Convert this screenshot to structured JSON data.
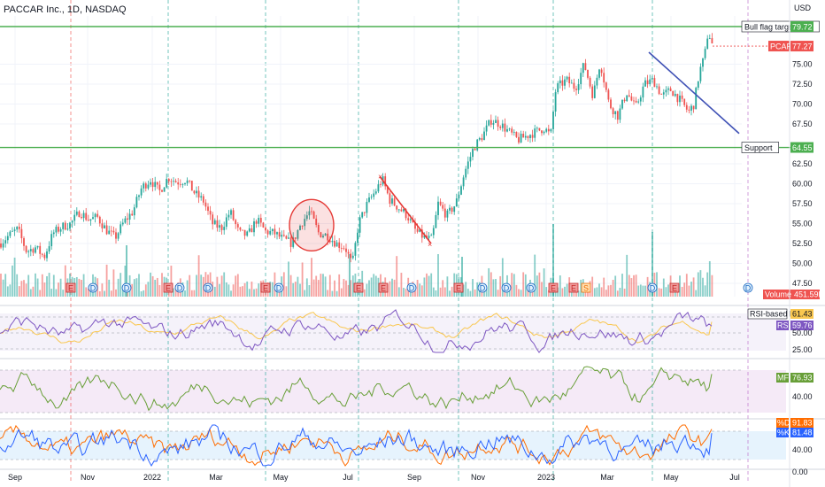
{
  "title": "PACCAR Inc., 1D, NASDAQ",
  "currency": "USD",
  "chart_data": {
    "type": "candlestick",
    "symbol": "PCAR",
    "price_axis": {
      "ticks": [
        "75.00",
        "72.50",
        "70.00",
        "67.50",
        "62.50",
        "60.00",
        "57.50",
        "55.00",
        "52.50",
        "50.00",
        "47.50"
      ],
      "ylim": [
        46.2,
        81.0
      ]
    },
    "time_axis": {
      "ticks": [
        "Sep",
        "Nov",
        "2022",
        "Mar",
        "May",
        "Jul",
        "Sep",
        "Nov",
        "2023",
        "Mar",
        "May",
        "Jul"
      ]
    },
    "price_path": [
      [
        0,
        52.5
      ],
      [
        10,
        53.5
      ],
      [
        20,
        54.3
      ],
      [
        30,
        51.5
      ],
      [
        40,
        52.0
      ],
      [
        50,
        50.8
      ],
      [
        60,
        53.8
      ],
      [
        70,
        54.6
      ],
      [
        80,
        55.0
      ],
      [
        90,
        56.5
      ],
      [
        100,
        55.5
      ],
      [
        110,
        55.8
      ],
      [
        120,
        54.2
      ],
      [
        130,
        53.2
      ],
      [
        140,
        55.2
      ],
      [
        150,
        56.5
      ],
      [
        160,
        59.5
      ],
      [
        170,
        60.5
      ],
      [
        180,
        59.0
      ],
      [
        190,
        60.8
      ],
      [
        200,
        60.2
      ],
      [
        210,
        60.5
      ],
      [
        220,
        58.8
      ],
      [
        230,
        57.8
      ],
      [
        240,
        55.0
      ],
      [
        250,
        54.4
      ],
      [
        260,
        56.5
      ],
      [
        270,
        53.8
      ],
      [
        280,
        53.5
      ],
      [
        290,
        55.5
      ],
      [
        300,
        54.0
      ],
      [
        310,
        53.8
      ],
      [
        320,
        53.0
      ],
      [
        330,
        52.5
      ],
      [
        340,
        55.0
      ],
      [
        350,
        56.5
      ],
      [
        360,
        53.8
      ],
      [
        370,
        53.5
      ],
      [
        380,
        52.5
      ],
      [
        390,
        52.0
      ],
      [
        398,
        49.8
      ],
      [
        405,
        55.0
      ],
      [
        415,
        57.5
      ],
      [
        425,
        59.2
      ],
      [
        432,
        60.6
      ],
      [
        440,
        58.0
      ],
      [
        450,
        57.0
      ],
      [
        460,
        56.0
      ],
      [
        470,
        54.0
      ],
      [
        480,
        53.2
      ],
      [
        488,
        53.0
      ],
      [
        495,
        57.5
      ],
      [
        505,
        56.0
      ],
      [
        515,
        57.5
      ],
      [
        525,
        61.5
      ],
      [
        535,
        64.5
      ],
      [
        545,
        66.0
      ],
      [
        555,
        68.0
      ],
      [
        565,
        67.5
      ],
      [
        575,
        66.5
      ],
      [
        585,
        65.5
      ],
      [
        595,
        66.0
      ],
      [
        605,
        66.5
      ],
      [
        615,
        67.0
      ],
      [
        622,
        66.0
      ],
      [
        628,
        72.0
      ],
      [
        640,
        73.0
      ],
      [
        650,
        72.0
      ],
      [
        660,
        75.0
      ],
      [
        670,
        71.0
      ],
      [
        678,
        75.3
      ],
      [
        688,
        70.0
      ],
      [
        698,
        68.5
      ],
      [
        708,
        71.5
      ],
      [
        718,
        69.5
      ],
      [
        728,
        72.5
      ],
      [
        738,
        73.0
      ],
      [
        748,
        71.0
      ],
      [
        758,
        71.8
      ],
      [
        768,
        70.5
      ],
      [
        778,
        69.0
      ],
      [
        784,
        70.0
      ],
      [
        790,
        74.0
      ],
      [
        796,
        76.0
      ],
      [
        800,
        79.2
      ],
      [
        805,
        77.3
      ]
    ],
    "volume": {
      "label": "Volume",
      "last": "451.59K"
    },
    "horizontal_levels": [
      {
        "name": "Bull flag target",
        "price": 79.72,
        "label": "79.72",
        "color": "#4caf50"
      },
      {
        "name": "Support",
        "price": 64.55,
        "label": "64.55",
        "color": "#4caf50"
      }
    ],
    "last_price": {
      "symbol": "PCAR",
      "value": 77.27,
      "label": "77.27",
      "color": "#ef5350"
    },
    "trendlines": [
      {
        "from": [
          429,
          60.9
        ],
        "to": [
          487,
          52.5
        ],
        "color": "#e53935"
      },
      {
        "from": [
          733,
          76.5
        ],
        "to": [
          835,
          66.3
        ],
        "color": "#3f51b5"
      }
    ],
    "annotation_circle": {
      "center": [
        352,
        54.8
      ],
      "color": "#e53935"
    },
    "rsi": {
      "ma_label": "RSI-based MA",
      "ma_value": "61.43",
      "label": "RSI",
      "value": "59.76",
      "ticks": [
        "50.00",
        "25.00"
      ]
    },
    "mfi": {
      "label": "MF",
      "value": "76.93",
      "ticks": [
        "40.00"
      ]
    },
    "stoch": {
      "d_label": "%D",
      "d_value": "91.83",
      "k_label": "%K",
      "k_value": "81.48",
      "ticks": [
        "40.00"
      ],
      "bottom_tick": "0.00"
    },
    "events": {
      "earnings": "E",
      "dividends": "D",
      "split": "S",
      "sequence": [
        "E",
        "D",
        "D",
        "E",
        "D",
        "D",
        "E",
        "D",
        "E",
        "E",
        "D",
        "E",
        "D",
        "D",
        "D",
        "E",
        "E",
        "S",
        "D",
        "E",
        "D"
      ]
    },
    "colors": {
      "up": "#26a69a",
      "down": "#ef5350",
      "level": "#4caf50",
      "rsi": "#7e57c2",
      "rsi_ma": "#f9c74f",
      "mfi": "#689f38",
      "stoch_k": "#2962ff",
      "stoch_d": "#ff6d00"
    }
  }
}
